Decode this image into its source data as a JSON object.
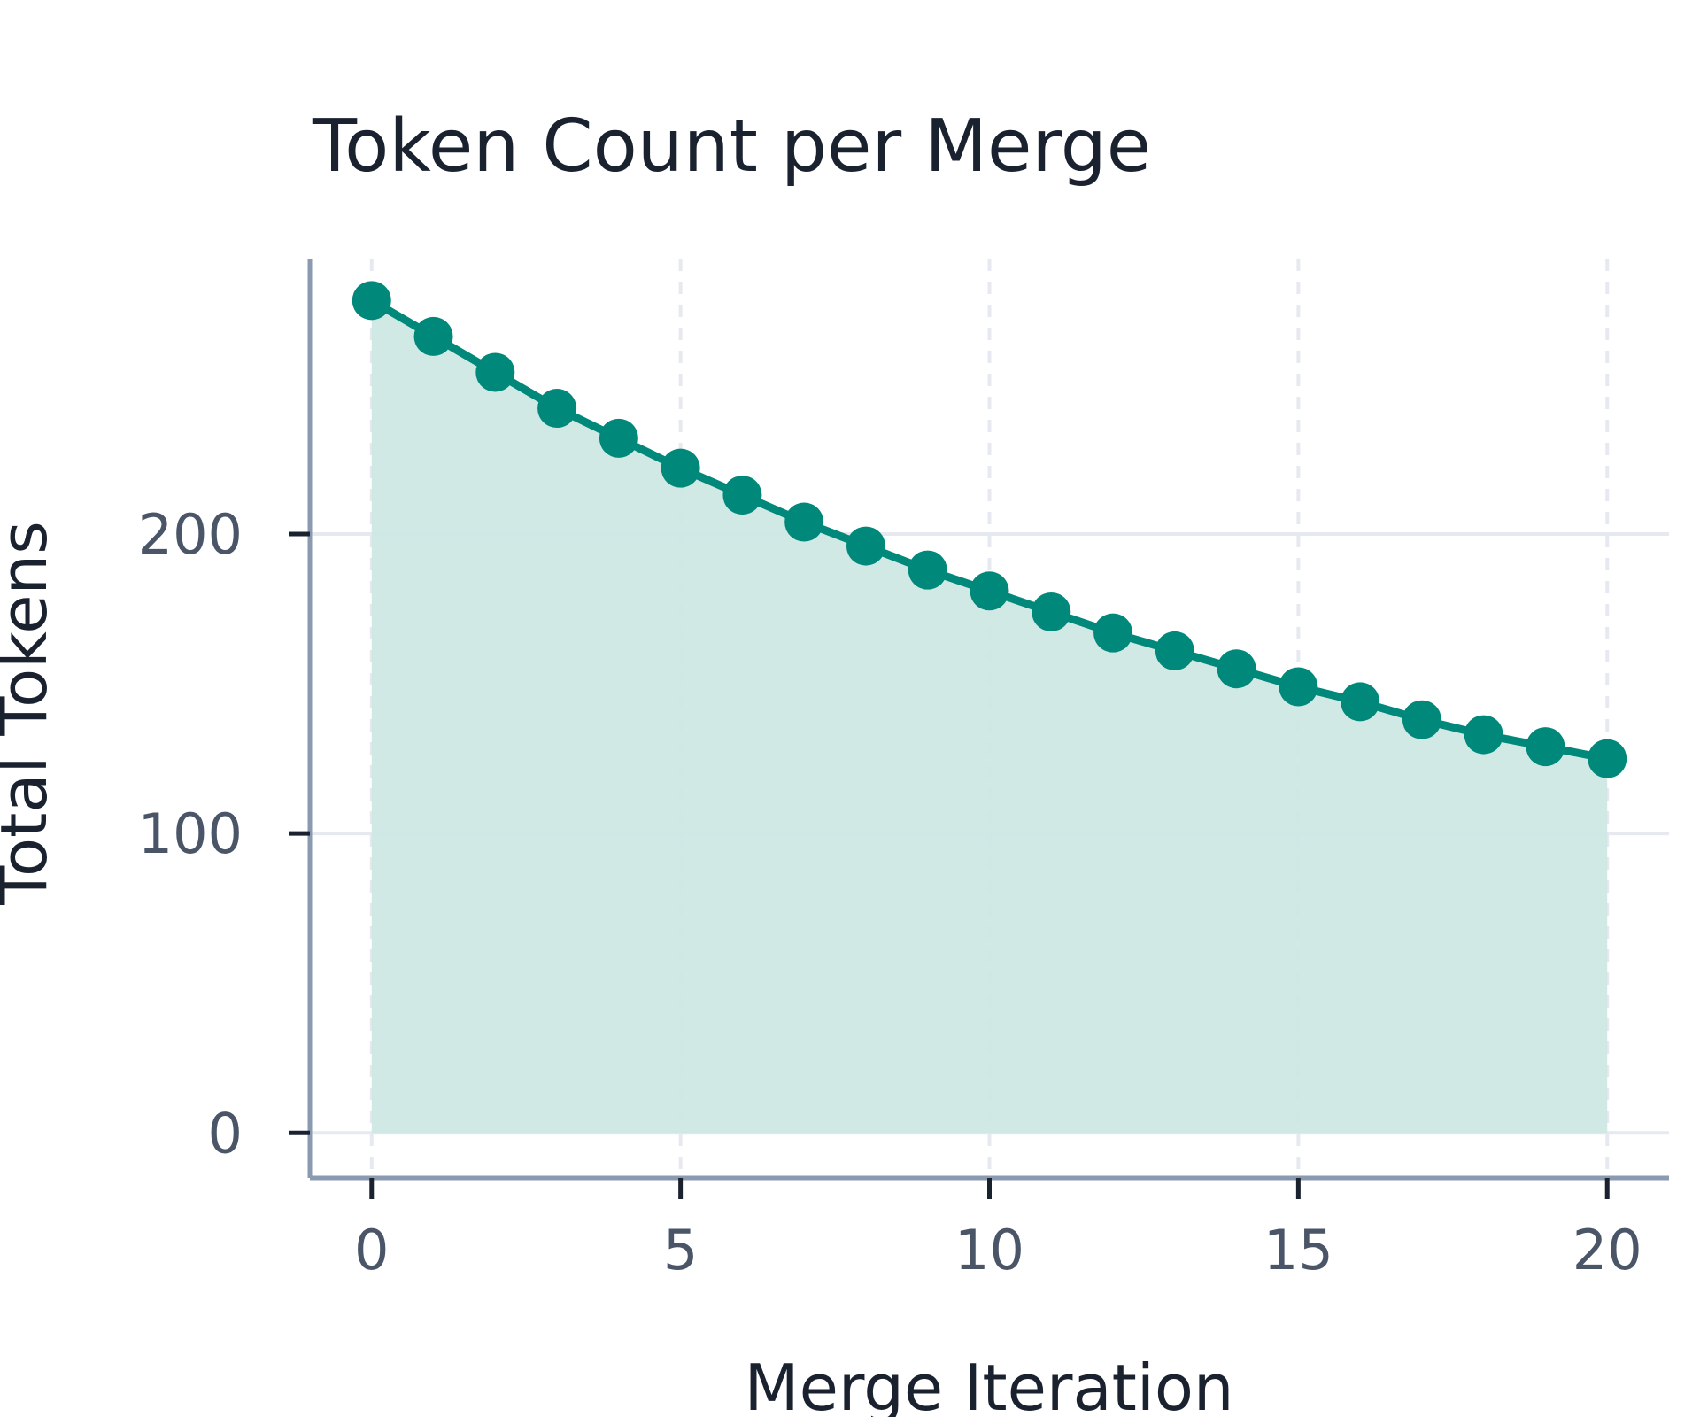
{
  "chart_data": {
    "type": "area",
    "title": "Token Count per Merge",
    "xlabel": "Merge Iteration",
    "ylabel": "Total Tokens",
    "xlim": [
      -1,
      21
    ],
    "ylim": [
      -15,
      292
    ],
    "x_ticks": [
      0,
      5,
      10,
      15,
      20
    ],
    "y_ticks": [
      0,
      100,
      200
    ],
    "grid": true,
    "x_grid_style": "dashed",
    "y_grid_style": "solid",
    "colors": {
      "line": "#00897b",
      "fill": "#cde8e4",
      "axis": "#8a9ab0",
      "grid": "#e6e9ef"
    },
    "series": [
      {
        "x": [
          0,
          1,
          2,
          3,
          4,
          5,
          6,
          7,
          8,
          9,
          10,
          11,
          12,
          13,
          14,
          15,
          16,
          17,
          18,
          19,
          20
        ],
        "values": [
          278,
          266,
          254,
          242,
          232,
          222,
          213,
          204,
          196,
          188,
          181,
          174,
          167,
          161,
          155,
          149,
          144,
          138,
          133,
          129,
          125
        ]
      }
    ]
  }
}
